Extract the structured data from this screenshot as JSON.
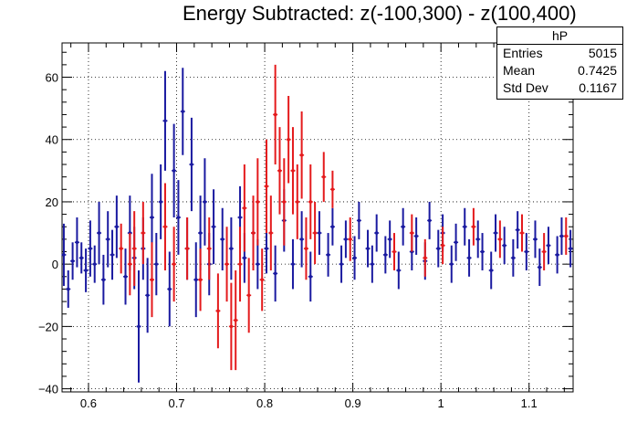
{
  "title": "Energy Subtracted: z(-100,300) - z(100,400)",
  "stats_box": {
    "name": "hP",
    "rows": [
      {
        "label": "Entries",
        "value": "5015"
      },
      {
        "label": "Mean",
        "value": "0.7425"
      },
      {
        "label": "Std Dev",
        "value": "0.1167"
      }
    ]
  },
  "chart_data": {
    "type": "scatter",
    "title": "Energy Subtracted: z(-100,300) - z(100,400)",
    "xlabel": "",
    "ylabel": "",
    "xlim": [
      0.57,
      1.15
    ],
    "ylim": [
      -41,
      71
    ],
    "grid": true,
    "x_ticks": [
      "0.6",
      "0.7",
      "0.8",
      "0.9",
      "1",
      "1.1"
    ],
    "y_ticks": [
      "−40",
      "−20",
      "0",
      "20",
      "40",
      "60"
    ],
    "series": [
      {
        "color": "#1a1aa0",
        "style": "points-with-error-bars",
        "points": [
          [
            0.572,
            3,
            10
          ],
          [
            0.577,
            -8,
            6
          ],
          [
            0.582,
            1,
            6
          ],
          [
            0.587,
            7,
            8
          ],
          [
            0.592,
            2,
            5
          ],
          [
            0.597,
            -2,
            7
          ],
          [
            0.602,
            5,
            9
          ],
          [
            0.607,
            0,
            6
          ],
          [
            0.612,
            10,
            10
          ],
          [
            0.617,
            -5,
            8
          ],
          [
            0.622,
            8,
            9
          ],
          [
            0.627,
            3,
            8
          ],
          [
            0.632,
            12,
            10
          ],
          [
            0.642,
            -4,
            9
          ],
          [
            0.647,
            10,
            12
          ],
          [
            0.652,
            2,
            10
          ],
          [
            0.657,
            -20,
            18
          ],
          [
            0.662,
            5,
            10
          ],
          [
            0.667,
            -10,
            12
          ],
          [
            0.672,
            15,
            14
          ],
          [
            0.677,
            0,
            10
          ],
          [
            0.682,
            20,
            12
          ],
          [
            0.687,
            46,
            16
          ],
          [
            0.692,
            -8,
            12
          ],
          [
            0.697,
            30,
            15
          ],
          [
            0.702,
            15,
            12
          ],
          [
            0.707,
            49,
            14
          ],
          [
            0.712,
            5,
            10
          ],
          [
            0.717,
            32,
            15
          ],
          [
            0.722,
            -5,
            12
          ],
          [
            0.727,
            10,
            12
          ],
          [
            0.732,
            20,
            14
          ],
          [
            0.737,
            0,
            10
          ],
          [
            0.742,
            12,
            12
          ],
          [
            0.752,
            8,
            10
          ],
          [
            0.762,
            5,
            10
          ],
          [
            0.772,
            15,
            10
          ],
          [
            0.777,
            2,
            8
          ],
          [
            0.787,
            10,
            9
          ],
          [
            0.792,
            0,
            8
          ],
          [
            0.802,
            5,
            8
          ],
          [
            0.812,
            -3,
            9
          ],
          [
            0.822,
            14,
            10
          ],
          [
            0.832,
            0,
            8
          ],
          [
            0.842,
            8,
            9
          ],
          [
            0.852,
            -4,
            8
          ],
          [
            0.862,
            10,
            7
          ],
          [
            0.872,
            3,
            7
          ],
          [
            0.877,
            12,
            6
          ],
          [
            0.887,
            0,
            6
          ],
          [
            0.892,
            8,
            6
          ],
          [
            0.902,
            2,
            7
          ],
          [
            0.907,
            14,
            6
          ],
          [
            0.917,
            5,
            6
          ],
          [
            0.922,
            0,
            6
          ],
          [
            0.927,
            10,
            6
          ],
          [
            0.937,
            3,
            6
          ],
          [
            0.942,
            8,
            6
          ],
          [
            0.952,
            -2,
            6
          ],
          [
            0.957,
            12,
            6
          ],
          [
            0.967,
            4,
            6
          ],
          [
            0.972,
            9,
            6
          ],
          [
            0.982,
            1,
            6
          ],
          [
            0.987,
            14,
            6
          ],
          [
            0.997,
            5,
            6
          ],
          [
            1.002,
            10,
            6
          ],
          [
            1.012,
            0,
            6
          ],
          [
            1.017,
            7,
            6
          ],
          [
            1.027,
            12,
            6
          ],
          [
            1.032,
            2,
            6
          ],
          [
            1.042,
            8,
            6
          ],
          [
            1.047,
            4,
            6
          ],
          [
            1.057,
            -2,
            6
          ],
          [
            1.062,
            10,
            6
          ],
          [
            1.072,
            6,
            6
          ],
          [
            1.082,
            2,
            6
          ],
          [
            1.087,
            11,
            6
          ],
          [
            1.097,
            4,
            6
          ],
          [
            1.107,
            8,
            6
          ],
          [
            1.112,
            -1,
            6
          ],
          [
            1.122,
            6,
            6
          ],
          [
            1.132,
            3,
            6
          ],
          [
            1.137,
            9,
            6
          ],
          [
            1.147,
            5,
            6
          ]
        ]
      },
      {
        "color": "#e41a1c",
        "style": "points-with-error-bars",
        "points": [
          [
            0.637,
            5,
            8
          ],
          [
            0.647,
            0,
            10
          ],
          [
            0.652,
            5,
            12
          ],
          [
            0.662,
            10,
            10
          ],
          [
            0.672,
            -5,
            12
          ],
          [
            0.687,
            12,
            14
          ],
          [
            0.697,
            0,
            12
          ],
          [
            0.712,
            5,
            10
          ],
          [
            0.727,
            -5,
            10
          ],
          [
            0.737,
            5,
            10
          ],
          [
            0.747,
            -15,
            12
          ],
          [
            0.757,
            0,
            12
          ],
          [
            0.762,
            -20,
            14
          ],
          [
            0.767,
            -18,
            16
          ],
          [
            0.772,
            0,
            12
          ],
          [
            0.777,
            18,
            14
          ],
          [
            0.782,
            -10,
            12
          ],
          [
            0.787,
            10,
            12
          ],
          [
            0.792,
            20,
            14
          ],
          [
            0.797,
            -5,
            10
          ],
          [
            0.802,
            25,
            15
          ],
          [
            0.807,
            10,
            12
          ],
          [
            0.812,
            48,
            16
          ],
          [
            0.817,
            30,
            14
          ],
          [
            0.822,
            20,
            14
          ],
          [
            0.827,
            40,
            14
          ],
          [
            0.832,
            30,
            14
          ],
          [
            0.837,
            20,
            12
          ],
          [
            0.842,
            35,
            14
          ],
          [
            0.847,
            5,
            10
          ],
          [
            0.852,
            20,
            12
          ],
          [
            0.857,
            10,
            10
          ],
          [
            0.867,
            28,
            8
          ],
          [
            0.877,
            24,
            6
          ],
          [
            0.897,
            8,
            7
          ],
          [
            0.947,
            4,
            6
          ],
          [
            0.967,
            10,
            6
          ],
          [
            0.982,
            2,
            6
          ],
          [
            1.002,
            6,
            6
          ],
          [
            1.037,
            12,
            6
          ],
          [
            1.067,
            8,
            6
          ],
          [
            1.092,
            10,
            6
          ],
          [
            1.117,
            4,
            6
          ],
          [
            1.142,
            9,
            6
          ]
        ]
      }
    ]
  }
}
